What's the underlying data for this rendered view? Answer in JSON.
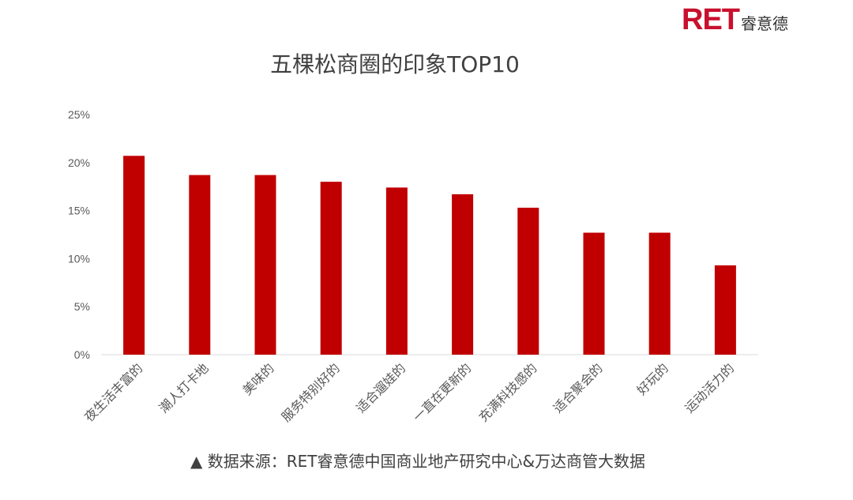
{
  "logo": {
    "mark": "RET",
    "text": "睿意德"
  },
  "footer": {
    "source": "▲ 数据来源：RET睿意德中国商业地产研究中心&万达商管大数据"
  },
  "colors": {
    "bar": "#c00000",
    "axis": "#d9d9d9",
    "text": "#595959"
  },
  "chart_data": {
    "type": "bar",
    "title": "五棵松商圈的印象TOP10",
    "categories": [
      "夜生活丰富的",
      "潮人打卡地",
      "美味的",
      "服务特别好的",
      "适合遛娃的",
      "一直在更新的",
      "充满科技感的",
      "适合聚会的",
      "好玩的",
      "运动活力的"
    ],
    "values": [
      20.7,
      18.7,
      18.7,
      18.0,
      17.4,
      16.7,
      15.3,
      12.7,
      12.7,
      9.3
    ],
    "ylim": [
      0,
      25
    ],
    "yticks": [
      "0%",
      "5%",
      "10%",
      "15%",
      "20%",
      "25%"
    ],
    "ytick_values": [
      0,
      5,
      10,
      15,
      20,
      25
    ],
    "grid": false,
    "legend": "none"
  }
}
